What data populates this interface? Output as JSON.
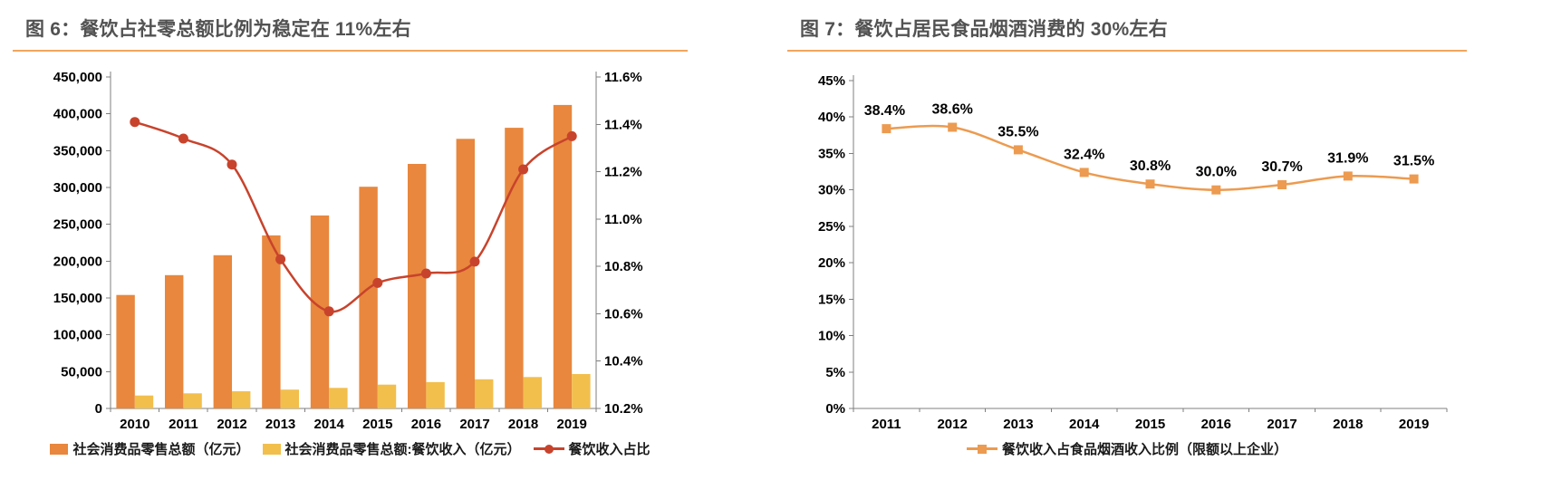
{
  "colors": {
    "accent_line": "#F2A55F",
    "title_color": "#525252",
    "bar_orange": "#E8873D",
    "bar_yellow": "#F2BF4D",
    "line_red": "#C8432C",
    "line_orange": "#EC9B50",
    "axis_gray": "#7F7F7F",
    "tick_text": "#000000"
  },
  "chart_data": [
    {
      "type": "bar",
      "subtype": "bar+line-combo",
      "title": "图 6：餐饮占社零总额比例为稳定在 11%左右",
      "categories": [
        "2010",
        "2011",
        "2012",
        "2013",
        "2014",
        "2015",
        "2016",
        "2017",
        "2018",
        "2019"
      ],
      "left_axis": {
        "min": 0,
        "max": 450000,
        "step": 50000
      },
      "right_axis": {
        "min": 10.2,
        "max": 11.6,
        "step": 0.2,
        "suffix": "%"
      },
      "grid": false,
      "legend_position": "bottom",
      "series": [
        {
          "name": "社会消费品零售总额（亿元）",
          "type": "bar",
          "axis": "left",
          "color": "#E8873D",
          "values": [
            154000,
            181000,
            208000,
            235000,
            262000,
            301000,
            332000,
            366000,
            381000,
            412000
          ]
        },
        {
          "name": "社会消费品零售总额:餐饮收入（亿元）",
          "type": "bar",
          "axis": "left",
          "color": "#F2BF4D",
          "values": [
            17600,
            20500,
            23400,
            25600,
            27900,
            32300,
            35800,
            39600,
            42700,
            46700
          ]
        },
        {
          "name": "餐饮收入占比",
          "type": "line",
          "axis": "right",
          "color": "#C8432C",
          "marker": "circle",
          "values": [
            11.41,
            11.34,
            11.23,
            10.83,
            10.61,
            10.73,
            10.77,
            10.82,
            11.21,
            11.35
          ]
        }
      ]
    },
    {
      "type": "line",
      "title": "图 7：餐饮占居民食品烟酒消费的 30%左右",
      "categories": [
        "2011",
        "2012",
        "2013",
        "2014",
        "2015",
        "2016",
        "2017",
        "2018",
        "2019"
      ],
      "y_axis": {
        "min": 0,
        "max": 45,
        "step": 5,
        "suffix": "%"
      },
      "grid": false,
      "legend_position": "bottom",
      "series": [
        {
          "name": "餐饮收入占食品烟酒收入比例（限额以上企业）",
          "type": "line",
          "color": "#EC9B50",
          "marker": "square",
          "values": [
            38.4,
            38.6,
            35.5,
            32.4,
            30.8,
            30.0,
            30.7,
            31.9,
            31.5
          ],
          "labels": [
            "38.4%",
            "38.6%",
            "35.5%",
            "32.4%",
            "30.8%",
            "30.0%",
            "30.7%",
            "31.9%",
            "31.5%"
          ]
        }
      ]
    }
  ]
}
